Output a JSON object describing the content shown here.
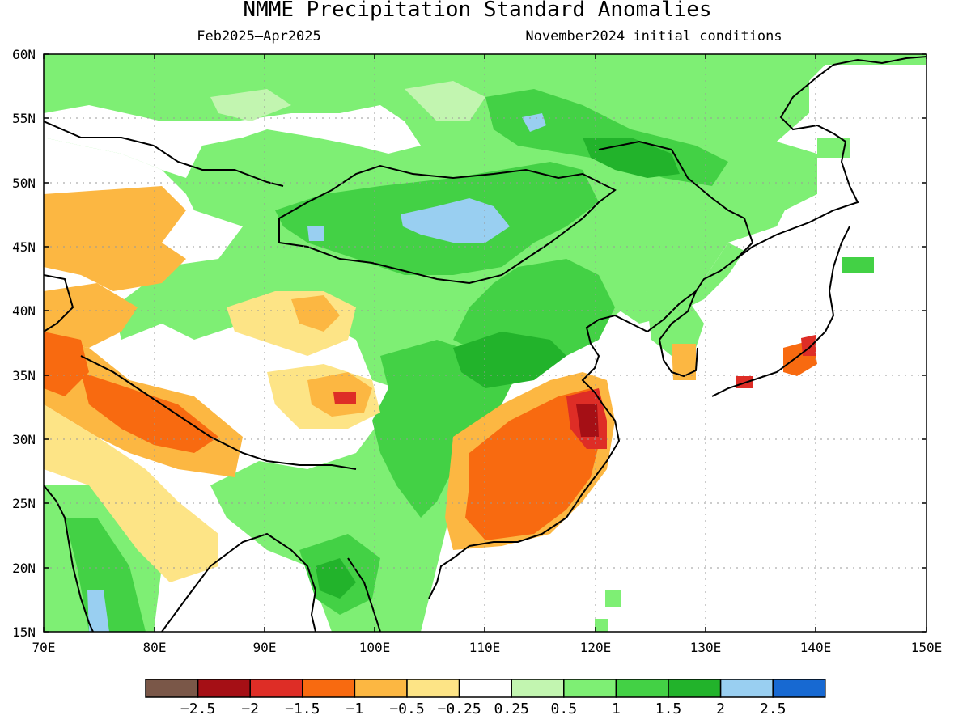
{
  "title": "NMME Precipitation Standard Anomalies",
  "subtitle_left": "Feb2025–Apr2025",
  "subtitle_right": "November2024 initial conditions",
  "lon_labels": [
    "70E",
    "80E",
    "90E",
    "100E",
    "110E",
    "120E",
    "130E",
    "140E",
    "150E"
  ],
  "lat_labels": [
    "60N",
    "55N",
    "50N",
    "45N",
    "40N",
    "35N",
    "30N",
    "25N",
    "20N",
    "15N"
  ],
  "colorbar": {
    "colors": [
      "#7a5748",
      "#a50f15",
      "#de2d26",
      "#f86a10",
      "#fcb742",
      "#fde486",
      "#ffffff",
      "#c2f5b0",
      "#7eef74",
      "#43d145",
      "#22b32b",
      "#99cff1",
      "#1769d2"
    ],
    "labels": [
      "−2.5",
      "−2",
      "−1.5",
      "−1",
      "−0.5",
      "−0.25",
      "0.25",
      "0.5",
      "1",
      "1.5",
      "2",
      "2.5"
    ]
  },
  "map": {
    "lon_range": [
      70,
      150
    ],
    "lat_range": [
      15,
      60
    ],
    "grid": "dotted"
  }
}
